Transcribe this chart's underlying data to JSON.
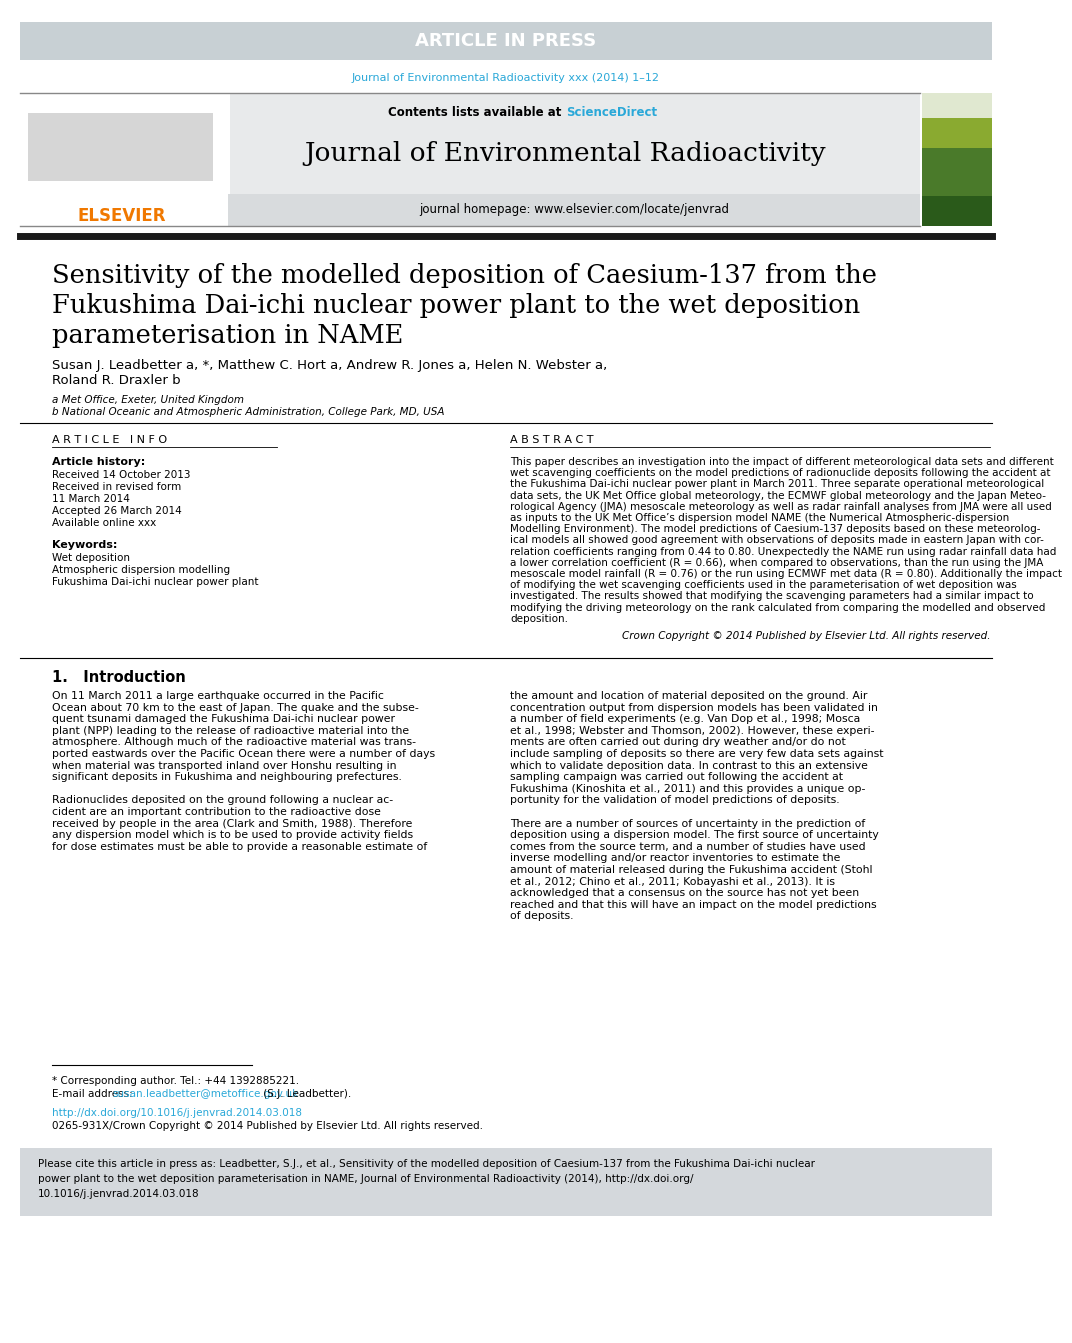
{
  "article_in_press_bg": "#c8d0d4",
  "article_in_press_text": "ARTICLE IN PRESS",
  "journal_ref_text": "Journal of Environmental Radioactivity xxx (2014) 1–12",
  "journal_ref_color": "#2aa8d8",
  "header_bg": "#e8eaeb",
  "contents_text": "Contents lists available at ",
  "sciencedirect_text": "ScienceDirect",
  "sciencedirect_color": "#2aa8d8",
  "journal_title": "Journal of Environmental Radioactivity",
  "homepage_text": "journal homepage: www.elsevier.com/locate/jenvrad",
  "elsevier_color": "#f07800",
  "elsevier_text": "ELSEVIER",
  "thick_rule_color": "#1a1a1a",
  "paper_title_line1": "Sensitivity of the modelled deposition of Caesium-137 from the",
  "paper_title_line2": "Fukushima Dai-ichi nuclear power plant to the wet deposition",
  "paper_title_line3": "parameterisation in NAME",
  "authors_line1": "Susan J. Leadbetter a, *, Matthew C. Hort a, Andrew R. Jones a, Helen N. Webster a,",
  "authors_line2": "Roland R. Draxler b",
  "affil_a": "a Met Office, Exeter, United Kingdom",
  "affil_b": "b National Oceanic and Atmospheric Administration, College Park, MD, USA",
  "article_info_title": "A R T I C L E   I N F O",
  "abstract_title": "A B S T R A C T",
  "article_history_title": "Article history:",
  "received_text": "Received 14 October 2013",
  "revised_text": "Received in revised form",
  "revised_date": "11 March 2014",
  "accepted_text": "Accepted 26 March 2014",
  "available_text": "Available online xxx",
  "keywords_title": "Keywords:",
  "keyword1": "Wet deposition",
  "keyword2": "Atmospheric dispersion modelling",
  "keyword3": "Fukushima Dai-ichi nuclear power plant",
  "copyright_text": "Crown Copyright © 2014 Published by Elsevier Ltd. All rights reserved.",
  "section1_title": "1.   Introduction",
  "footnote_tel": "* Corresponding author. Tel.: +44 1392885221.",
  "footnote_email_label": "E-mail address: ",
  "footnote_email": "susan.leadbetter@metoffice.gov.uk",
  "footnote_name": " (S.J. Leadbetter).",
  "doi_text": "http://dx.doi.org/10.1016/j.jenvrad.2014.03.018",
  "issn_text": "0265-931X/Crown Copyright © 2014 Published by Elsevier Ltd. All rights reserved.",
  "cite_bg": "#d4d8dc",
  "link_color": "#2aa8d8",
  "bg_color": "#ffffff",
  "text_color": "#000000",
  "abstract_lines": [
    "This paper describes an investigation into the impact of different meteorological data sets and different",
    "wet scavenging coefficients on the model predictions of radionuclide deposits following the accident at",
    "the Fukushima Dai-ichi nuclear power plant in March 2011. Three separate operational meteorological",
    "data sets, the UK Met Office global meteorology, the ECMWF global meteorology and the Japan Meteo-",
    "rological Agency (JMA) mesoscale meteorology as well as radar rainfall analyses from JMA were all used",
    "as inputs to the UK Met Office’s dispersion model NAME (the Numerical Atmospheric-dispersion",
    "Modelling Environment). The model predictions of Caesium-137 deposits based on these meteorolog-",
    "ical models all showed good agreement with observations of deposits made in eastern Japan with cor-",
    "relation coefficients ranging from 0.44 to 0.80. Unexpectedly the NAME run using radar rainfall data had",
    "a lower correlation coefficient (R = 0.66), when compared to observations, than the run using the JMA",
    "mesoscale model rainfall (R = 0.76) or the run using ECMWF met data (R = 0.80). Additionally the impact",
    "of modifying the wet scavenging coefficients used in the parameterisation of wet deposition was",
    "investigated. The results showed that modifying the scavenging parameters had a similar impact to",
    "modifying the driving meteorology on the rank calculated from comparing the modelled and observed",
    "deposition."
  ],
  "intro1_lines": [
    "On 11 March 2011 a large earthquake occurred in the Pacific",
    "Ocean about 70 km to the east of Japan. The quake and the subse-",
    "quent tsunami damaged the Fukushima Dai-ichi nuclear power",
    "plant (NPP) leading to the release of radioactive material into the",
    "atmosphere. Although much of the radioactive material was trans-",
    "ported eastwards over the Pacific Ocean there were a number of days",
    "when material was transported inland over Honshu resulting in",
    "significant deposits in Fukushima and neighbouring prefectures.",
    "",
    "Radionuclides deposited on the ground following a nuclear ac-",
    "cident are an important contribution to the radioactive dose",
    "received by people in the area (Clark and Smith, 1988). Therefore",
    "any dispersion model which is to be used to provide activity fields",
    "for dose estimates must be able to provide a reasonable estimate of"
  ],
  "intro2_lines": [
    "the amount and location of material deposited on the ground. Air",
    "concentration output from dispersion models has been validated in",
    "a number of field experiments (e.g. Van Dop et al., 1998; Mosca",
    "et al., 1998; Webster and Thomson, 2002). However, these experi-",
    "ments are often carried out during dry weather and/or do not",
    "include sampling of deposits so there are very few data sets against",
    "which to validate deposition data. In contrast to this an extensive",
    "sampling campaign was carried out following the accident at",
    "Fukushima (Kinoshita et al., 2011) and this provides a unique op-",
    "portunity for the validation of model predictions of deposits.",
    "",
    "There are a number of sources of uncertainty in the prediction of",
    "deposition using a dispersion model. The first source of uncertainty",
    "comes from the source term, and a number of studies have used",
    "inverse modelling and/or reactor inventories to estimate the",
    "amount of material released during the Fukushima accident (Stohl",
    "et al., 2012; Chino et al., 2011; Kobayashi et al., 2013). It is",
    "acknowledged that a consensus on the source has not yet been",
    "reached and that this will have an impact on the model predictions",
    "of deposits."
  ],
  "cite_lines": [
    "Please cite this article in press as: Leadbetter, S.J., et al., Sensitivity of the modelled deposition of Caesium-137 from the Fukushima Dai-ichi nuclear",
    "power plant to the wet deposition parameterisation in NAME, Journal of Environmental Radioactivity (2014), http://dx.doi.org/",
    "10.1016/j.jenvrad.2014.03.018"
  ]
}
